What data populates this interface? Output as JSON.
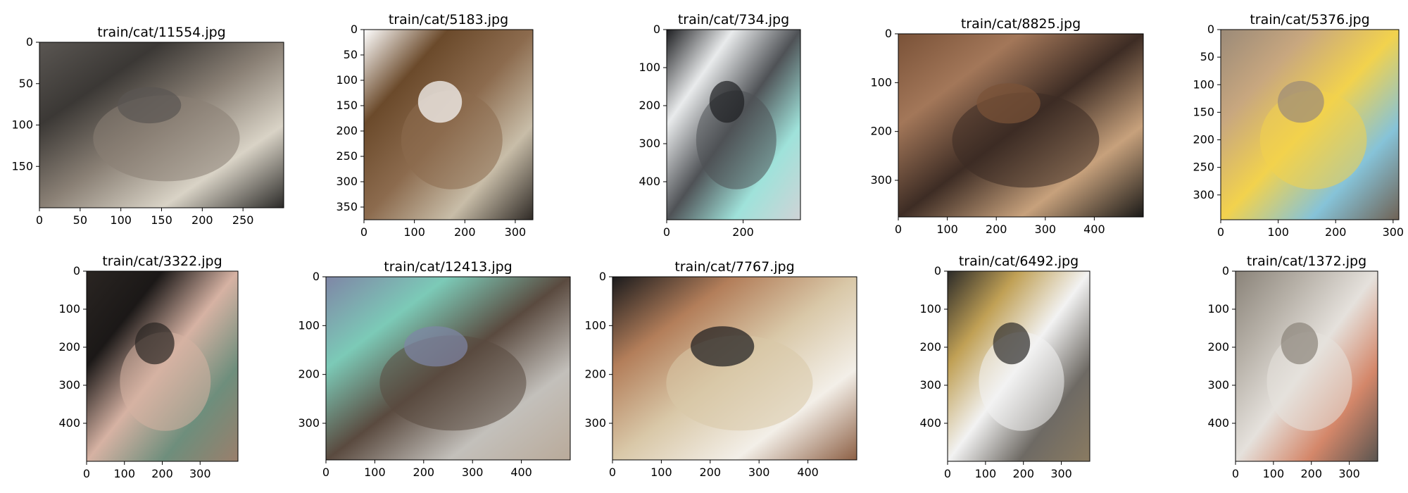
{
  "chart_data": [
    {
      "type": "image",
      "title": "train/cat/11554.jpg",
      "xlim": [
        0,
        300
      ],
      "ylim": [
        200,
        0
      ],
      "xticks": [
        0,
        50,
        100,
        150,
        200,
        250
      ],
      "yticks": [
        0,
        50,
        100,
        150
      ],
      "colors": [
        "#5a5652",
        "#3b3835",
        "#8a8075",
        "#d9d3c6",
        "#2b2a28"
      ]
    },
    {
      "type": "image",
      "title": "train/cat/5183.jpg",
      "xlim": [
        0,
        335
      ],
      "ylim": [
        375,
        0
      ],
      "xticks": [
        0,
        100,
        200,
        300
      ],
      "yticks": [
        0,
        50,
        100,
        150,
        200,
        250,
        300,
        350
      ],
      "colors": [
        "#ffffff",
        "#6b4a2b",
        "#8c6b4e",
        "#c8bda8",
        "#2f2a26"
      ]
    },
    {
      "type": "image",
      "title": "train/cat/734.jpg",
      "xlim": [
        0,
        350
      ],
      "ylim": [
        500,
        0
      ],
      "xticks": [
        0,
        200
      ],
      "yticks": [
        0,
        100,
        200,
        300,
        400
      ],
      "colors": [
        "#1e1f22",
        "#e9ebec",
        "#4f5256",
        "#9fe2da",
        "#cfd3d6"
      ]
    },
    {
      "type": "image",
      "title": "train/cat/8825.jpg",
      "xlim": [
        0,
        500
      ],
      "ylim": [
        375,
        0
      ],
      "xticks": [
        0,
        100,
        200,
        300,
        400
      ],
      "yticks": [
        0,
        100,
        200,
        300
      ],
      "colors": [
        "#7a5238",
        "#a37759",
        "#3d2c24",
        "#c7a17c",
        "#1b1a18"
      ]
    },
    {
      "type": "image",
      "title": "train/cat/5376.jpg",
      "xlim": [
        0,
        310
      ],
      "ylim": [
        345,
        0
      ],
      "xticks": [
        0,
        100,
        200,
        300
      ],
      "yticks": [
        0,
        50,
        100,
        150,
        200,
        250,
        300
      ],
      "colors": [
        "#9b8a78",
        "#c8a77f",
        "#f2d24d",
        "#86c3d8",
        "#6f6255"
      ]
    },
    {
      "type": "image",
      "title": "train/cat/3322.jpg",
      "xlim": [
        0,
        400
      ],
      "ylim": [
        500,
        0
      ],
      "xticks": [
        0,
        100,
        200,
        300
      ],
      "yticks": [
        0,
        100,
        200,
        300,
        400
      ],
      "colors": [
        "#2a2522",
        "#1b1817",
        "#d6b2a3",
        "#6e8e7c",
        "#9a7f6c"
      ]
    },
    {
      "type": "image",
      "title": "train/cat/12413.jpg",
      "xlim": [
        0,
        500
      ],
      "ylim": [
        375,
        0
      ],
      "xticks": [
        0,
        100,
        200,
        300,
        400
      ],
      "yticks": [
        0,
        100,
        200,
        300
      ],
      "colors": [
        "#7f86a6",
        "#7ccab7",
        "#5a4a3f",
        "#c3c0bb",
        "#b9aa9a"
      ]
    },
    {
      "type": "image",
      "title": "train/cat/7767.jpg",
      "xlim": [
        0,
        500
      ],
      "ylim": [
        375,
        0
      ],
      "xticks": [
        0,
        100,
        200,
        300,
        400
      ],
      "yticks": [
        0,
        100,
        200,
        300
      ],
      "colors": [
        "#1a1a1c",
        "#b37e5a",
        "#d9c8a8",
        "#f3efe8",
        "#8d6045"
      ]
    },
    {
      "type": "image",
      "title": "train/cat/6492.jpg",
      "xlim": [
        0,
        375
      ],
      "ylim": [
        500,
        0
      ],
      "xticks": [
        0,
        100,
        200,
        300
      ],
      "yticks": [
        0,
        100,
        200,
        300,
        400
      ],
      "colors": [
        "#2c2b29",
        "#c0a055",
        "#f2f2f2",
        "#6e6a64",
        "#8a7b62"
      ]
    },
    {
      "type": "image",
      "title": "train/cat/1372.jpg",
      "xlim": [
        0,
        375
      ],
      "ylim": [
        500,
        0
      ],
      "xticks": [
        0,
        100,
        200,
        300
      ],
      "yticks": [
        0,
        100,
        200,
        300,
        400
      ],
      "colors": [
        "#8a8379",
        "#b7b1a8",
        "#e5e1dc",
        "#d4876a",
        "#5a5550"
      ]
    }
  ]
}
